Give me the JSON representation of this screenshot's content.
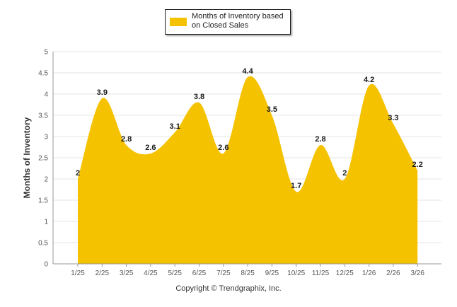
{
  "chart_data": {
    "type": "area",
    "title": "",
    "xlabel": "",
    "ylabel": "Months of Inventory",
    "ylim": [
      0,
      5
    ],
    "yticks": [
      "0",
      "0.5",
      "1",
      "1.5",
      "2",
      "2.5",
      "3",
      "3.5",
      "4",
      "4.5",
      "5"
    ],
    "categories": [
      "1/25",
      "2/25",
      "3/25",
      "4/25",
      "5/25",
      "6/25",
      "7/25",
      "8/25",
      "9/25",
      "10/25",
      "11/25",
      "12/25",
      "1/26",
      "2/26",
      "3/26"
    ],
    "series": [
      {
        "name": "Months of Inventory based on Closed Sales",
        "values": [
          2,
          3.9,
          2.8,
          2.6,
          3.1,
          3.8,
          2.6,
          4.4,
          3.5,
          1.7,
          2.8,
          2,
          4.2,
          3.3,
          2.2
        ],
        "labels": [
          "2",
          "3.9",
          "2.8",
          "2.6",
          "3.1",
          "3.8",
          "2.6",
          "4.4",
          "3.5",
          "1.7",
          "2.8",
          "2",
          "4.2",
          "3.3",
          "2.2"
        ],
        "color": "#f5c200"
      }
    ],
    "legend": "top-center",
    "grid": true
  },
  "legend": {
    "label": "Months of Inventory based on Closed Sales"
  },
  "footer": {
    "copyright": "Copyright © Trendgraphix, Inc."
  }
}
